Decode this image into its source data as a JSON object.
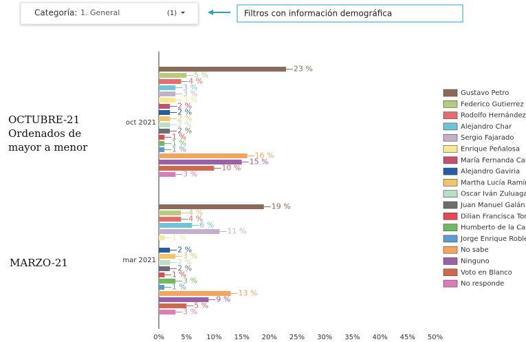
{
  "filter": {
    "label": "Categoría:",
    "value": "1. General",
    "count": "(1)"
  },
  "callout": "Filtros con información demográfica",
  "annotations": [
    "OCTUBRE-21",
    "Ordenados de",
    "mayor a menor",
    "MARZO-21"
  ],
  "chart_data": {
    "type": "hbar",
    "categories": [
      "oct 2021",
      "mar 2021"
    ],
    "xlim": [
      0,
      50
    ],
    "xticks": [
      {
        "value": 0,
        "label": "0%"
      },
      {
        "value": 5,
        "label": "5%"
      },
      {
        "value": 10,
        "label": "10%"
      },
      {
        "value": 15,
        "label": "15%"
      },
      {
        "value": 20,
        "label": "20%"
      },
      {
        "value": 25,
        "label": "25%"
      },
      {
        "value": 30,
        "label": "30%"
      },
      {
        "value": 35,
        "label": "35%"
      },
      {
        "value": 40,
        "label": "40%"
      },
      {
        "value": 45,
        "label": "45%"
      },
      {
        "value": 50,
        "label": "50%"
      }
    ],
    "series": [
      {
        "name": "Gustavo Petro",
        "color": "#8c6a5a",
        "values": [
          23,
          19
        ],
        "value_labels": [
          "23 %",
          "19 %"
        ]
      },
      {
        "name": "Federico Gutierrez",
        "color": "#b5cc7c",
        "values": [
          5,
          4
        ],
        "value_labels": [
          "5 %",
          "4 %"
        ]
      },
      {
        "name": "Rodolfo Hernández",
        "color": "#ec6a6a",
        "values": [
          4,
          4
        ],
        "value_labels": [
          "4 %",
          "4 %"
        ]
      },
      {
        "name": "Alejandro Char",
        "color": "#6cc6d9",
        "values": [
          3,
          6
        ],
        "value_labels": [
          "3 %",
          "6 %"
        ]
      },
      {
        "name": "Sergio Fajarado",
        "color": "#c4b0cc",
        "values": [
          3,
          11
        ],
        "value_labels": [
          "3 %",
          "11 %"
        ]
      },
      {
        "name": "Enrique Peñalosa",
        "color": "#f7e98e",
        "values": [
          3,
          1
        ],
        "value_labels": [
          "3 %",
          "1 %"
        ]
      },
      {
        "name": "María Fernanda Cabal",
        "color": "#c3506e",
        "values": [
          2,
          null
        ],
        "value_labels": [
          "2 %",
          null
        ]
      },
      {
        "name": "Alejandro Gaviria",
        "color": "#1f5faa",
        "values": [
          2,
          2
        ],
        "value_labels": [
          "2 %",
          "2 %"
        ]
      },
      {
        "name": "Martha Lucía Ramírez",
        "color": "#f6c463",
        "values": [
          2,
          3
        ],
        "value_labels": [
          "2 %",
          "3 %"
        ]
      },
      {
        "name": "Oscar Iván Zuluaga",
        "color": "#b9dfc6",
        "values": [
          2,
          2
        ],
        "value_labels": [
          "2 %",
          "2 %"
        ]
      },
      {
        "name": "Juan Manuel Galán",
        "color": "#6e6e6e",
        "values": [
          2,
          2
        ],
        "value_labels": [
          "2 %",
          "2 %"
        ]
      },
      {
        "name": "Dilian Francisca Toro",
        "color": "#e8474f",
        "values": [
          1,
          1
        ],
        "value_labels": [
          "1 %",
          "1 %"
        ]
      },
      {
        "name": "Humberto de la Calle",
        "color": "#6dbb5a",
        "values": [
          1,
          3
        ],
        "value_labels": [
          "1 %",
          "3 %"
        ]
      },
      {
        "name": "Jorge Enrique Robledo",
        "color": "#5b9bd5",
        "values": [
          1,
          1
        ],
        "value_labels": [
          "1 %",
          "1 %"
        ]
      },
      {
        "name": "No sabe",
        "color": "#f5a55a",
        "values": [
          16,
          13
        ],
        "value_labels": [
          "16 %",
          "13 %"
        ]
      },
      {
        "name": "Ninguno",
        "color": "#9b5fae",
        "values": [
          15,
          9
        ],
        "value_labels": [
          "15 %",
          "9 %"
        ]
      },
      {
        "name": "Voto en Blanco",
        "color": "#d0694a",
        "values": [
          10,
          5
        ],
        "value_labels": [
          "10 %",
          "5 %"
        ]
      },
      {
        "name": "No responde",
        "color": "#dc7cb8",
        "values": [
          3,
          3
        ],
        "value_labels": [
          "3 %",
          "3 %"
        ]
      }
    ]
  }
}
